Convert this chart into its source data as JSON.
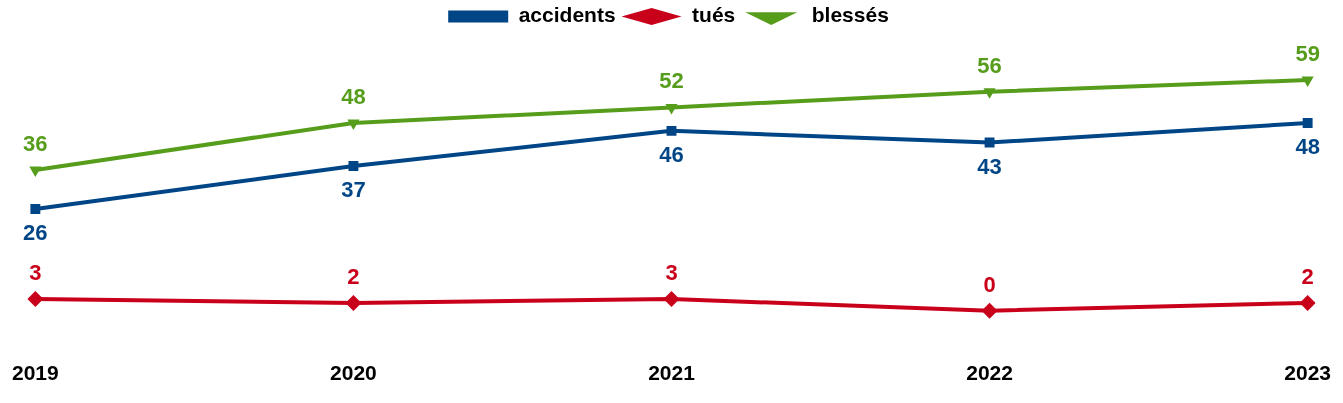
{
  "chart_data": {
    "type": "line",
    "categories": [
      "2019",
      "2020",
      "2021",
      "2022",
      "2023"
    ],
    "series": [
      {
        "name": "accidents",
        "color": "#004586",
        "values": [
          26,
          37,
          46,
          43,
          48
        ],
        "marker": "square"
      },
      {
        "name": "tués",
        "color": "#c9001a",
        "values": [
          3,
          2,
          3,
          0,
          2
        ],
        "marker": "diamond"
      },
      {
        "name": "blessés",
        "color": "#579d1c",
        "values": [
          36,
          48,
          52,
          56,
          59
        ],
        "marker": "triangle-down"
      }
    ],
    "data_labels": true,
    "legend": "top",
    "grid": false,
    "tick_labels": "x",
    "line_style": "solid"
  }
}
